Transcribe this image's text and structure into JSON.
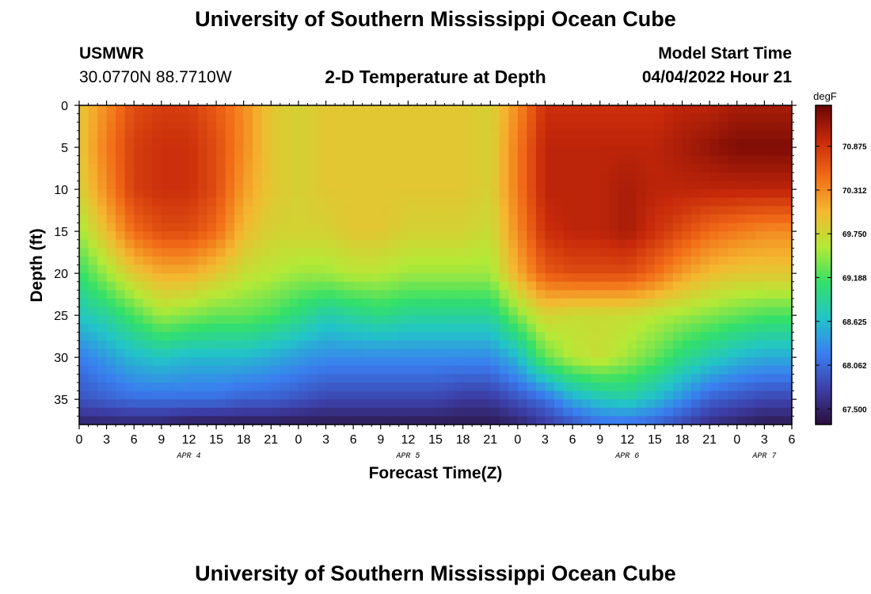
{
  "page": {
    "title": "University of Southern Mississippi Ocean Cube",
    "footer_title": "University of Southern Mississippi Ocean Cube",
    "station": "USMWR",
    "coords": "30.0770N  88.7710W",
    "subtitle": "2-D Temperature at Depth",
    "model_start_label": "Model Start Time",
    "model_start_value": "04/04/2022 Hour 21"
  },
  "chart_data": {
    "type": "heatmap",
    "title": "2-D Temperature at Depth",
    "xlabel": "Forecast Time(Z)",
    "ylabel": "Depth (ft)",
    "x_unit": "hours since 04/04/2022 00Z",
    "xlim": [
      0,
      78
    ],
    "x_ticks": [
      0,
      3,
      6,
      9,
      12,
      15,
      18,
      21,
      24,
      27,
      30,
      33,
      36,
      39,
      42,
      45,
      48,
      51,
      54,
      57,
      60,
      63,
      66,
      69,
      72,
      75,
      78
    ],
    "x_tick_labels": [
      "0",
      "3",
      "6",
      "9",
      "12",
      "15",
      "18",
      "21",
      "0",
      "3",
      "6",
      "9",
      "12",
      "15",
      "18",
      "21",
      "0",
      "3",
      "6",
      "9",
      "12",
      "15",
      "18",
      "21",
      "0",
      "3",
      "6"
    ],
    "date_labels": [
      {
        "x": 12,
        "label": "APR 4"
      },
      {
        "x": 36,
        "label": "APR 5"
      },
      {
        "x": 60,
        "label": "APR 6"
      },
      {
        "x": 75,
        "label": "APR 7"
      }
    ],
    "ylim": [
      0,
      38
    ],
    "y_inverted": true,
    "y_ticks": [
      0,
      5,
      10,
      15,
      20,
      25,
      30,
      35
    ],
    "colorbar": {
      "unit": "degF",
      "min": 67.3,
      "max": 71.4,
      "tick_values": [
        67.5,
        68.062,
        68.625,
        69.188,
        69.75,
        70.312,
        70.875
      ],
      "tick_labels": [
        "67.500",
        "68.062",
        "68.625",
        "69.188",
        "69.750",
        "70.312",
        "70.875"
      ],
      "palette": [
        "#2a0f3a",
        "#3d3fa8",
        "#3a7ef0",
        "#22c4c8",
        "#33e06a",
        "#b5e936",
        "#f4b830",
        "#f26b17",
        "#c7290a",
        "#6b0504"
      ]
    },
    "grid_x": [
      0,
      3,
      6,
      9,
      12,
      15,
      18,
      21,
      24,
      27,
      30,
      33,
      36,
      39,
      42,
      45,
      48,
      51,
      54,
      57,
      60,
      63,
      66,
      69,
      72,
      75,
      78
    ],
    "grid_depth": [
      0,
      5,
      10,
      15,
      20,
      25,
      30,
      35,
      38
    ],
    "values": [
      [
        69.9,
        70.3,
        70.7,
        70.8,
        70.8,
        70.6,
        70.3,
        69.9,
        69.8,
        69.9,
        69.9,
        69.9,
        69.9,
        69.9,
        69.9,
        69.8,
        70.3,
        70.9,
        70.9,
        70.9,
        70.9,
        70.9,
        71.0,
        71.0,
        71.1,
        71.1,
        71.1
      ],
      [
        69.9,
        70.4,
        70.8,
        70.9,
        70.9,
        70.7,
        70.3,
        69.9,
        69.8,
        69.9,
        69.9,
        69.9,
        69.9,
        69.9,
        69.9,
        69.8,
        70.4,
        71.0,
        71.0,
        71.0,
        71.0,
        71.0,
        71.1,
        71.2,
        71.3,
        71.3,
        71.3
      ],
      [
        69.8,
        70.3,
        70.8,
        70.9,
        70.9,
        70.7,
        70.2,
        69.9,
        69.8,
        69.9,
        69.9,
        69.9,
        69.9,
        69.9,
        69.9,
        69.8,
        70.4,
        71.0,
        71.0,
        71.0,
        71.1,
        71.0,
        71.0,
        71.0,
        71.0,
        71.0,
        71.0
      ],
      [
        69.5,
        70.0,
        70.5,
        70.7,
        70.7,
        70.5,
        70.0,
        69.8,
        69.8,
        69.8,
        69.9,
        69.9,
        69.8,
        69.8,
        69.8,
        69.7,
        70.3,
        70.9,
        71.0,
        71.0,
        71.1,
        70.9,
        70.7,
        70.5,
        70.4,
        70.3,
        70.3
      ],
      [
        69.1,
        69.5,
        69.9,
        70.1,
        70.1,
        69.9,
        69.7,
        69.6,
        69.5,
        69.5,
        69.6,
        69.6,
        69.5,
        69.5,
        69.5,
        69.5,
        70.1,
        70.6,
        70.7,
        70.7,
        70.7,
        70.5,
        70.2,
        70.0,
        69.9,
        69.9,
        69.9
      ],
      [
        68.7,
        68.9,
        69.2,
        69.5,
        69.4,
        69.3,
        69.3,
        69.2,
        69.0,
        68.8,
        68.9,
        69.0,
        68.9,
        68.9,
        68.9,
        68.9,
        69.4,
        69.8,
        69.7,
        69.7,
        69.7,
        69.6,
        69.5,
        69.4,
        69.3,
        69.2,
        69.2
      ],
      [
        68.2,
        68.4,
        68.6,
        68.7,
        68.6,
        68.6,
        68.6,
        68.5,
        68.4,
        68.3,
        68.3,
        68.3,
        68.3,
        68.3,
        68.3,
        68.3,
        68.6,
        69.3,
        69.6,
        69.7,
        69.5,
        69.3,
        69.0,
        68.8,
        68.6,
        68.5,
        68.5
      ],
      [
        67.9,
        68.0,
        68.1,
        68.1,
        68.1,
        68.1,
        68.0,
        68.0,
        67.9,
        67.8,
        67.8,
        67.8,
        67.8,
        67.8,
        67.7,
        67.7,
        67.9,
        68.1,
        68.5,
        68.7,
        68.8,
        68.6,
        68.3,
        68.0,
        67.9,
        67.8,
        67.8
      ],
      [
        67.5,
        67.5,
        67.5,
        67.5,
        67.4,
        67.4,
        67.4,
        67.4,
        67.4,
        67.4,
        67.4,
        67.4,
        67.4,
        67.4,
        67.4,
        67.4,
        67.5,
        67.7,
        67.9,
        68.1,
        68.1,
        68.0,
        67.8,
        67.6,
        67.5,
        67.4,
        67.4
      ]
    ]
  }
}
